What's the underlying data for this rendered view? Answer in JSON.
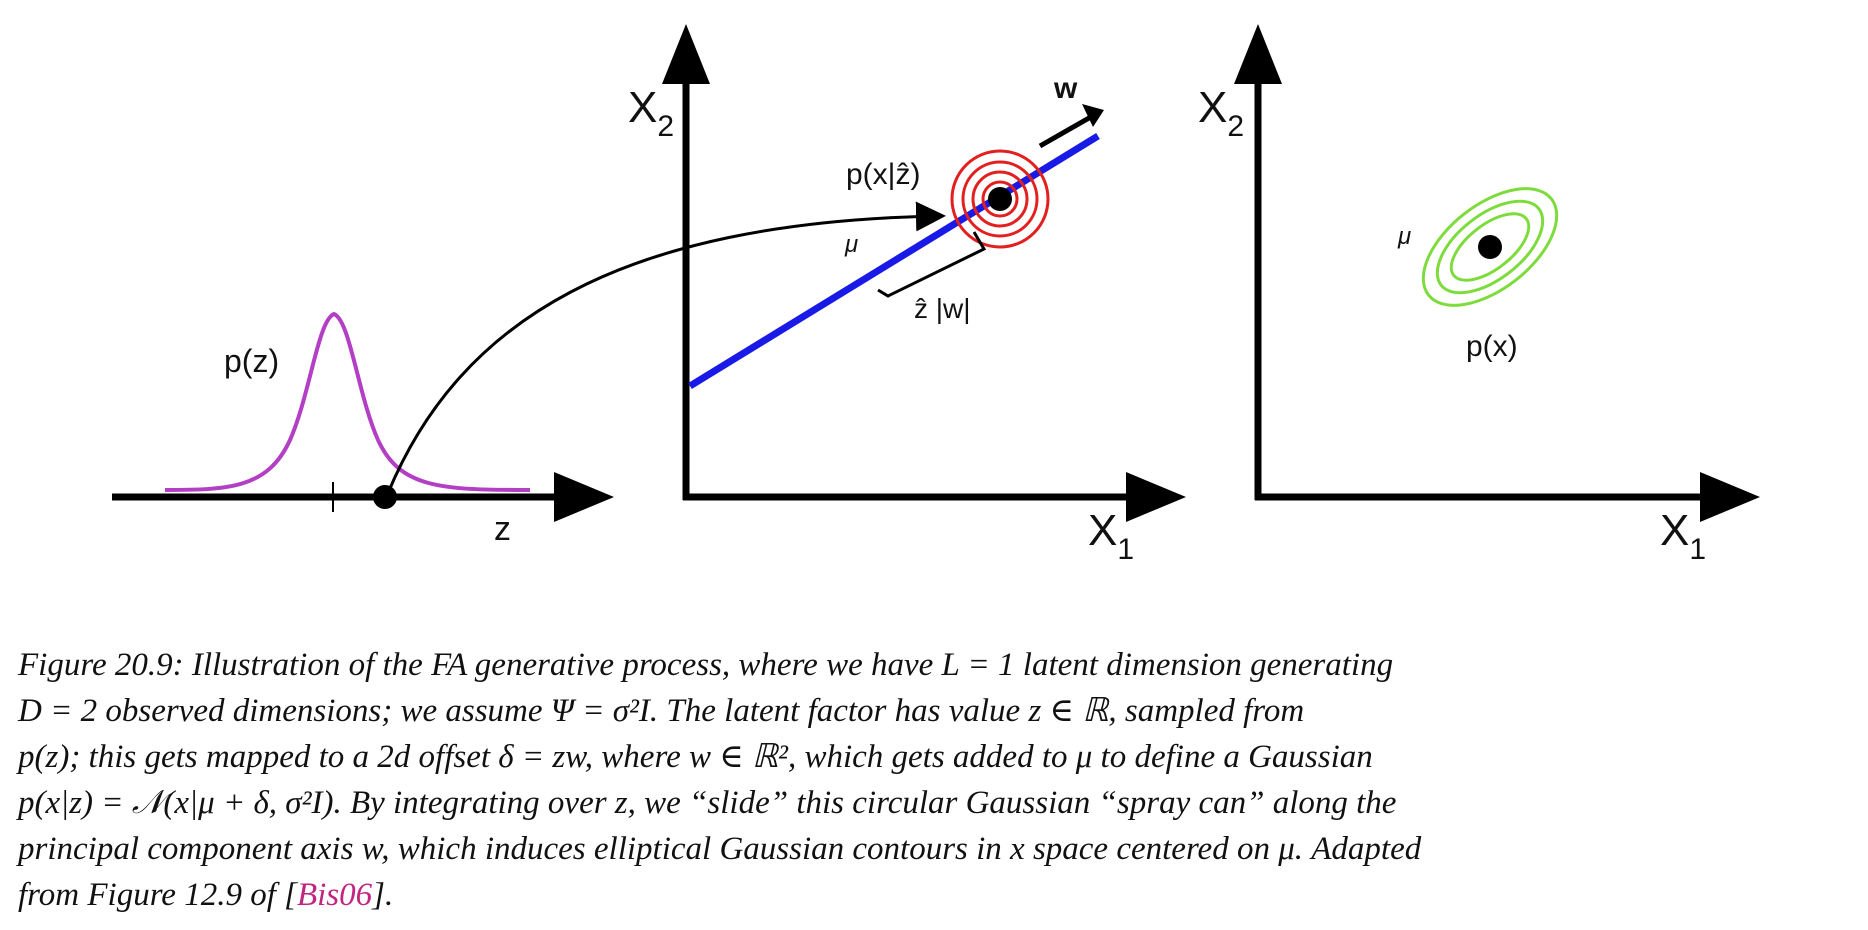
{
  "figure": {
    "left_panel": {
      "density_label": "p(z)",
      "axis_label": "z"
    },
    "middle_panel": {
      "x_axis_label": "X",
      "x_axis_sub": "1",
      "y_axis_label": "X",
      "y_axis_sub": "2",
      "w_label": "w",
      "cond_density_label": "p(x|ẑ)",
      "mu_label": "μ",
      "offset_label": "ẑ |w|"
    },
    "right_panel": {
      "x_axis_label": "X",
      "x_axis_sub": "1",
      "y_axis_label": "X",
      "y_axis_sub": "2",
      "mu_label": "μ",
      "density_label": "p(x)"
    },
    "colors": {
      "latent_density": "#b23fc4",
      "principal_axis": "#1a1ae6",
      "spray_can": "#e22020",
      "marginal_contours": "#7ddc3c"
    }
  },
  "caption": {
    "lines": [
      "Figure 20.9: Illustration of the FA generative process, where we have L = 1 latent dimension generating",
      "D = 2 observed dimensions; we assume Ψ = σ²I.  The latent factor has value z ∈ ℝ, sampled from",
      "p(z); this gets mapped to a 2d offset δ = zw, where w ∈ ℝ², which gets added to μ to define a Gaussian",
      "p(x|z) = 𝒩(x|μ + δ, σ²I).  By integrating over z, we “slide” this circular Gaussian “spray can” along the",
      "principal component axis w, which induces elliptical Gaussian contours in x space centered on μ. Adapted"
    ],
    "last_line_prefix": "from Figure 12.9 of [",
    "citation": "Bis06",
    "last_line_suffix": "]."
  }
}
